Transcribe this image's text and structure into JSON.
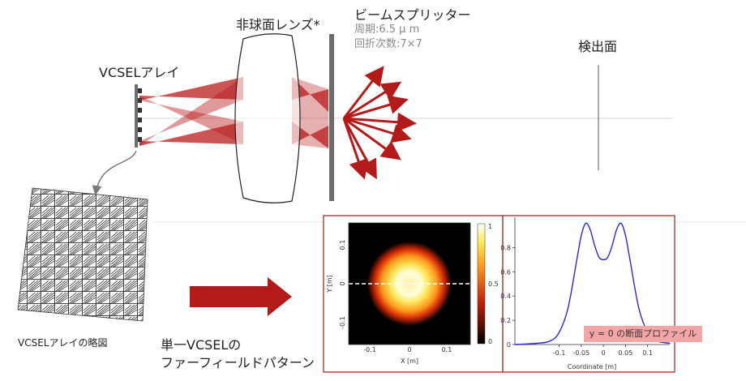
{
  "labels": {
    "vcsel_array": "VCSELアレイ",
    "lens": "非球面レンズ*",
    "beam_splitter": "ビームスプリッター",
    "period": "周期:6.5 μ m",
    "diffraction_orders": "回折次数:7×7",
    "detector_plane": "検出面",
    "array_sketch": "VCSELアレイの略図",
    "far_field_line1": "単一VCSELの",
    "far_field_line2": "ファーフィールドパターン",
    "profile_tag": "y = 0 の断面プロファイル"
  },
  "heatmap_plot": {
    "x_ticks": [
      "-0.1",
      "0",
      "0.1"
    ],
    "y_ticks": [
      "0.1",
      "0",
      "-0.1"
    ],
    "xlabel": "X [m]",
    "ylabel": "Y [m]",
    "colorbar_ticks": [
      "1",
      "0.5",
      "0"
    ]
  },
  "colors": {
    "beam": "#b81c1c",
    "frame": "#9b1c1c",
    "arrow": "#b31b1b",
    "profile_line": "#2a2ad4"
  },
  "chart_data": {
    "type": "line",
    "title": "y = 0 の断面プロファイル",
    "xlabel": "Coordinate [m]",
    "ylabel": "",
    "xlim": [
      -0.2,
      0.15
    ],
    "ylim": [
      0,
      1.05
    ],
    "x_ticks": [
      "-0.1",
      "-0.05",
      "0",
      "0.05",
      "0.1"
    ],
    "y_ticks": [
      "0",
      "0.2",
      "0.4",
      "0.6",
      "0.8"
    ],
    "x": [
      -0.2,
      -0.15,
      -0.12,
      -0.1,
      -0.08,
      -0.06,
      -0.05,
      -0.04,
      -0.03,
      -0.02,
      -0.01,
      0,
      0.01,
      0.02,
      0.03,
      0.04,
      0.05,
      0.06,
      0.08,
      0.1,
      0.12,
      0.15
    ],
    "series": [
      {
        "values": [
          0,
          0.01,
          0.03,
          0.1,
          0.3,
          0.7,
          0.9,
          1.0,
          0.95,
          0.82,
          0.72,
          0.7,
          0.72,
          0.82,
          0.95,
          1.0,
          0.9,
          0.7,
          0.3,
          0.1,
          0.03,
          0.01
        ]
      }
    ]
  }
}
